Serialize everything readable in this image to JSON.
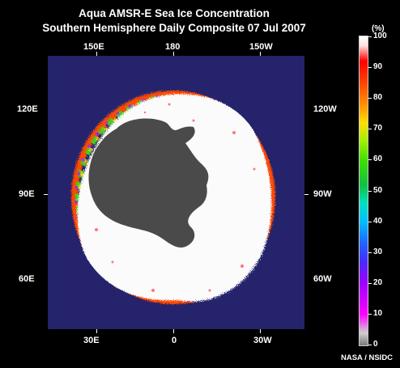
{
  "title_line1": "Aqua AMSR-E Sea Ice Concentration",
  "title_line2": "Southern Hemisphere Daily Composite  07 Jul 2007",
  "longitude_labels": {
    "top": [
      "150E",
      "180",
      "150W"
    ],
    "bottom": [
      "30E",
      "0",
      "30W"
    ],
    "left": [
      "120E",
      "90E",
      "60E"
    ],
    "right": [
      "120W",
      "90W",
      "60W"
    ]
  },
  "colorbar": {
    "unit": "(%)",
    "ticks": [
      "100",
      "90",
      "80",
      "70",
      "60",
      "50",
      "40",
      "30",
      "20",
      "10",
      "0"
    ]
  },
  "credit": "NASA / NSIDC",
  "colors": {
    "ocean": "#24236c",
    "land": "#4a4a4a",
    "ice_full": "#ffffff",
    "background": "#000000"
  }
}
